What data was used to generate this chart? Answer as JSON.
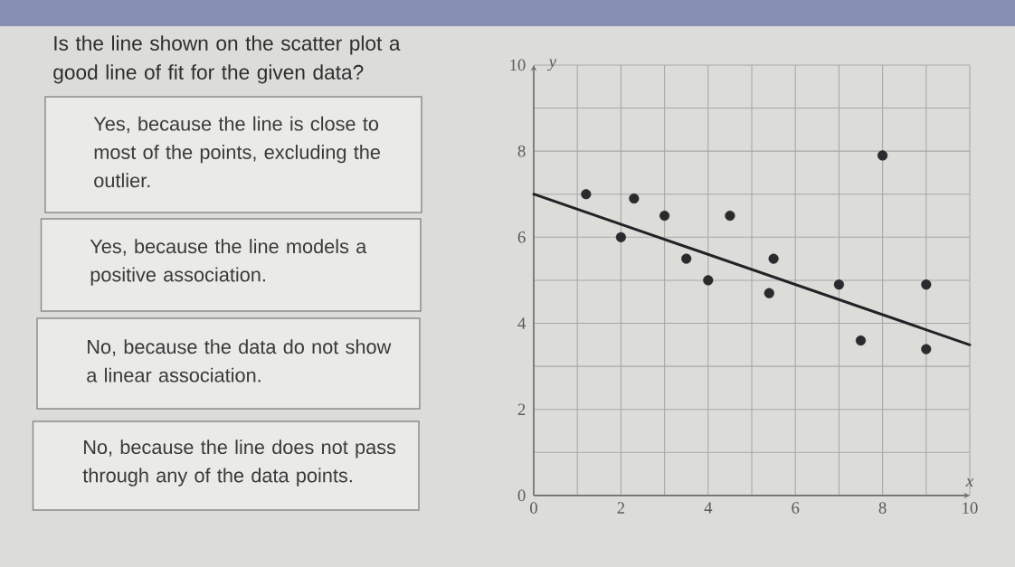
{
  "chart_data": [
    {
      "type": "other",
      "title": "Is the line shown on the scatter plot a good line of fit for the given data?",
      "annotations": [
        "Yes, because the line is close to most of the points, excluding the outlier.",
        "Yes, because the line models a positive association.",
        "No, because the data do not show a linear association.",
        "No, because the line does not pass through any of the data points."
      ]
    },
    {
      "type": "scatter",
      "xlabel": "x",
      "ylabel": "y",
      "xlim": [
        0,
        10
      ],
      "ylim": [
        0,
        10
      ],
      "xticks": [
        0,
        {
          "value": 1,
          "label": null
        },
        2,
        {
          "value": 3,
          "label": null
        },
        4,
        {
          "value": 5,
          "label": null
        },
        6,
        {
          "value": 7,
          "label": null
        },
        8,
        {
          "value": 9,
          "label": null
        },
        10
      ],
      "yticks": [
        0,
        {
          "value": 1,
          "label": null
        },
        2,
        {
          "value": 3,
          "label": null
        },
        4,
        {
          "value": 5,
          "label": null
        },
        6,
        {
          "value": 7,
          "label": null
        },
        8,
        {
          "value": 9,
          "label": null
        },
        10
      ],
      "grid": true,
      "marker": "circle",
      "series": [
        {
          "color": "#2b2b2e",
          "x": [
            1.2,
            2.0,
            2.3,
            3.0,
            3.5,
            4.0,
            4.5,
            5.4,
            5.5,
            7.0,
            7.5,
            8.0,
            9.0,
            9.0
          ],
          "values": [
            7.0,
            6.0,
            6.9,
            6.5,
            5.5,
            5.0,
            6.5,
            4.7,
            5.5,
            4.9,
            3.6,
            7.9,
            4.9,
            3.4
          ]
        },
        {
          "type": "line",
          "color": "#222226",
          "marker": "none",
          "x": [
            0,
            10
          ],
          "values": [
            7.0,
            3.5
          ]
        }
      ]
    }
  ]
}
